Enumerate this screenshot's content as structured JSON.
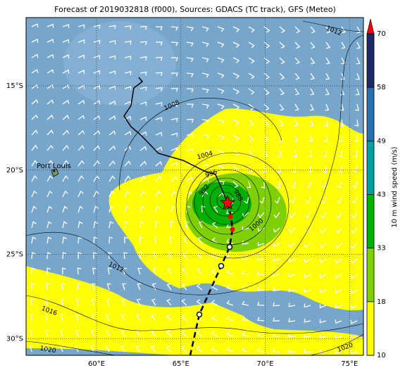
{
  "map": {
    "title": "Forecast of 2019032818 (f000), Sources: GDACS (TC track), GFS (Meteo)",
    "lon_ticks": [
      {
        "value": 60,
        "label": "60°E"
      },
      {
        "value": 65,
        "label": "65°E"
      },
      {
        "value": 70,
        "label": "70°E"
      },
      {
        "value": 75,
        "label": "75°E"
      }
    ],
    "lat_ticks": [
      {
        "value": -15,
        "label": "15°S"
      },
      {
        "value": -20,
        "label": "20°S"
      },
      {
        "value": -25,
        "label": "25°S"
      },
      {
        "value": -30,
        "label": "30°S"
      }
    ],
    "city": "Port Louis",
    "contour_labels": [
      1012,
      1008,
      1004,
      996,
      992,
      988,
      1000,
      1012,
      1016,
      1020,
      1020
    ],
    "colorbar": {
      "label": "10 m wind speed (m/s)",
      "ticks": [
        10,
        18,
        33,
        43,
        49,
        58,
        70
      ],
      "colors": [
        "#ffff00",
        "#7fd000",
        "#00b000",
        "#00a0a0",
        "#2a6faf",
        "#1e2a66"
      ],
      "extend_color": "#ff0000"
    }
  }
}
